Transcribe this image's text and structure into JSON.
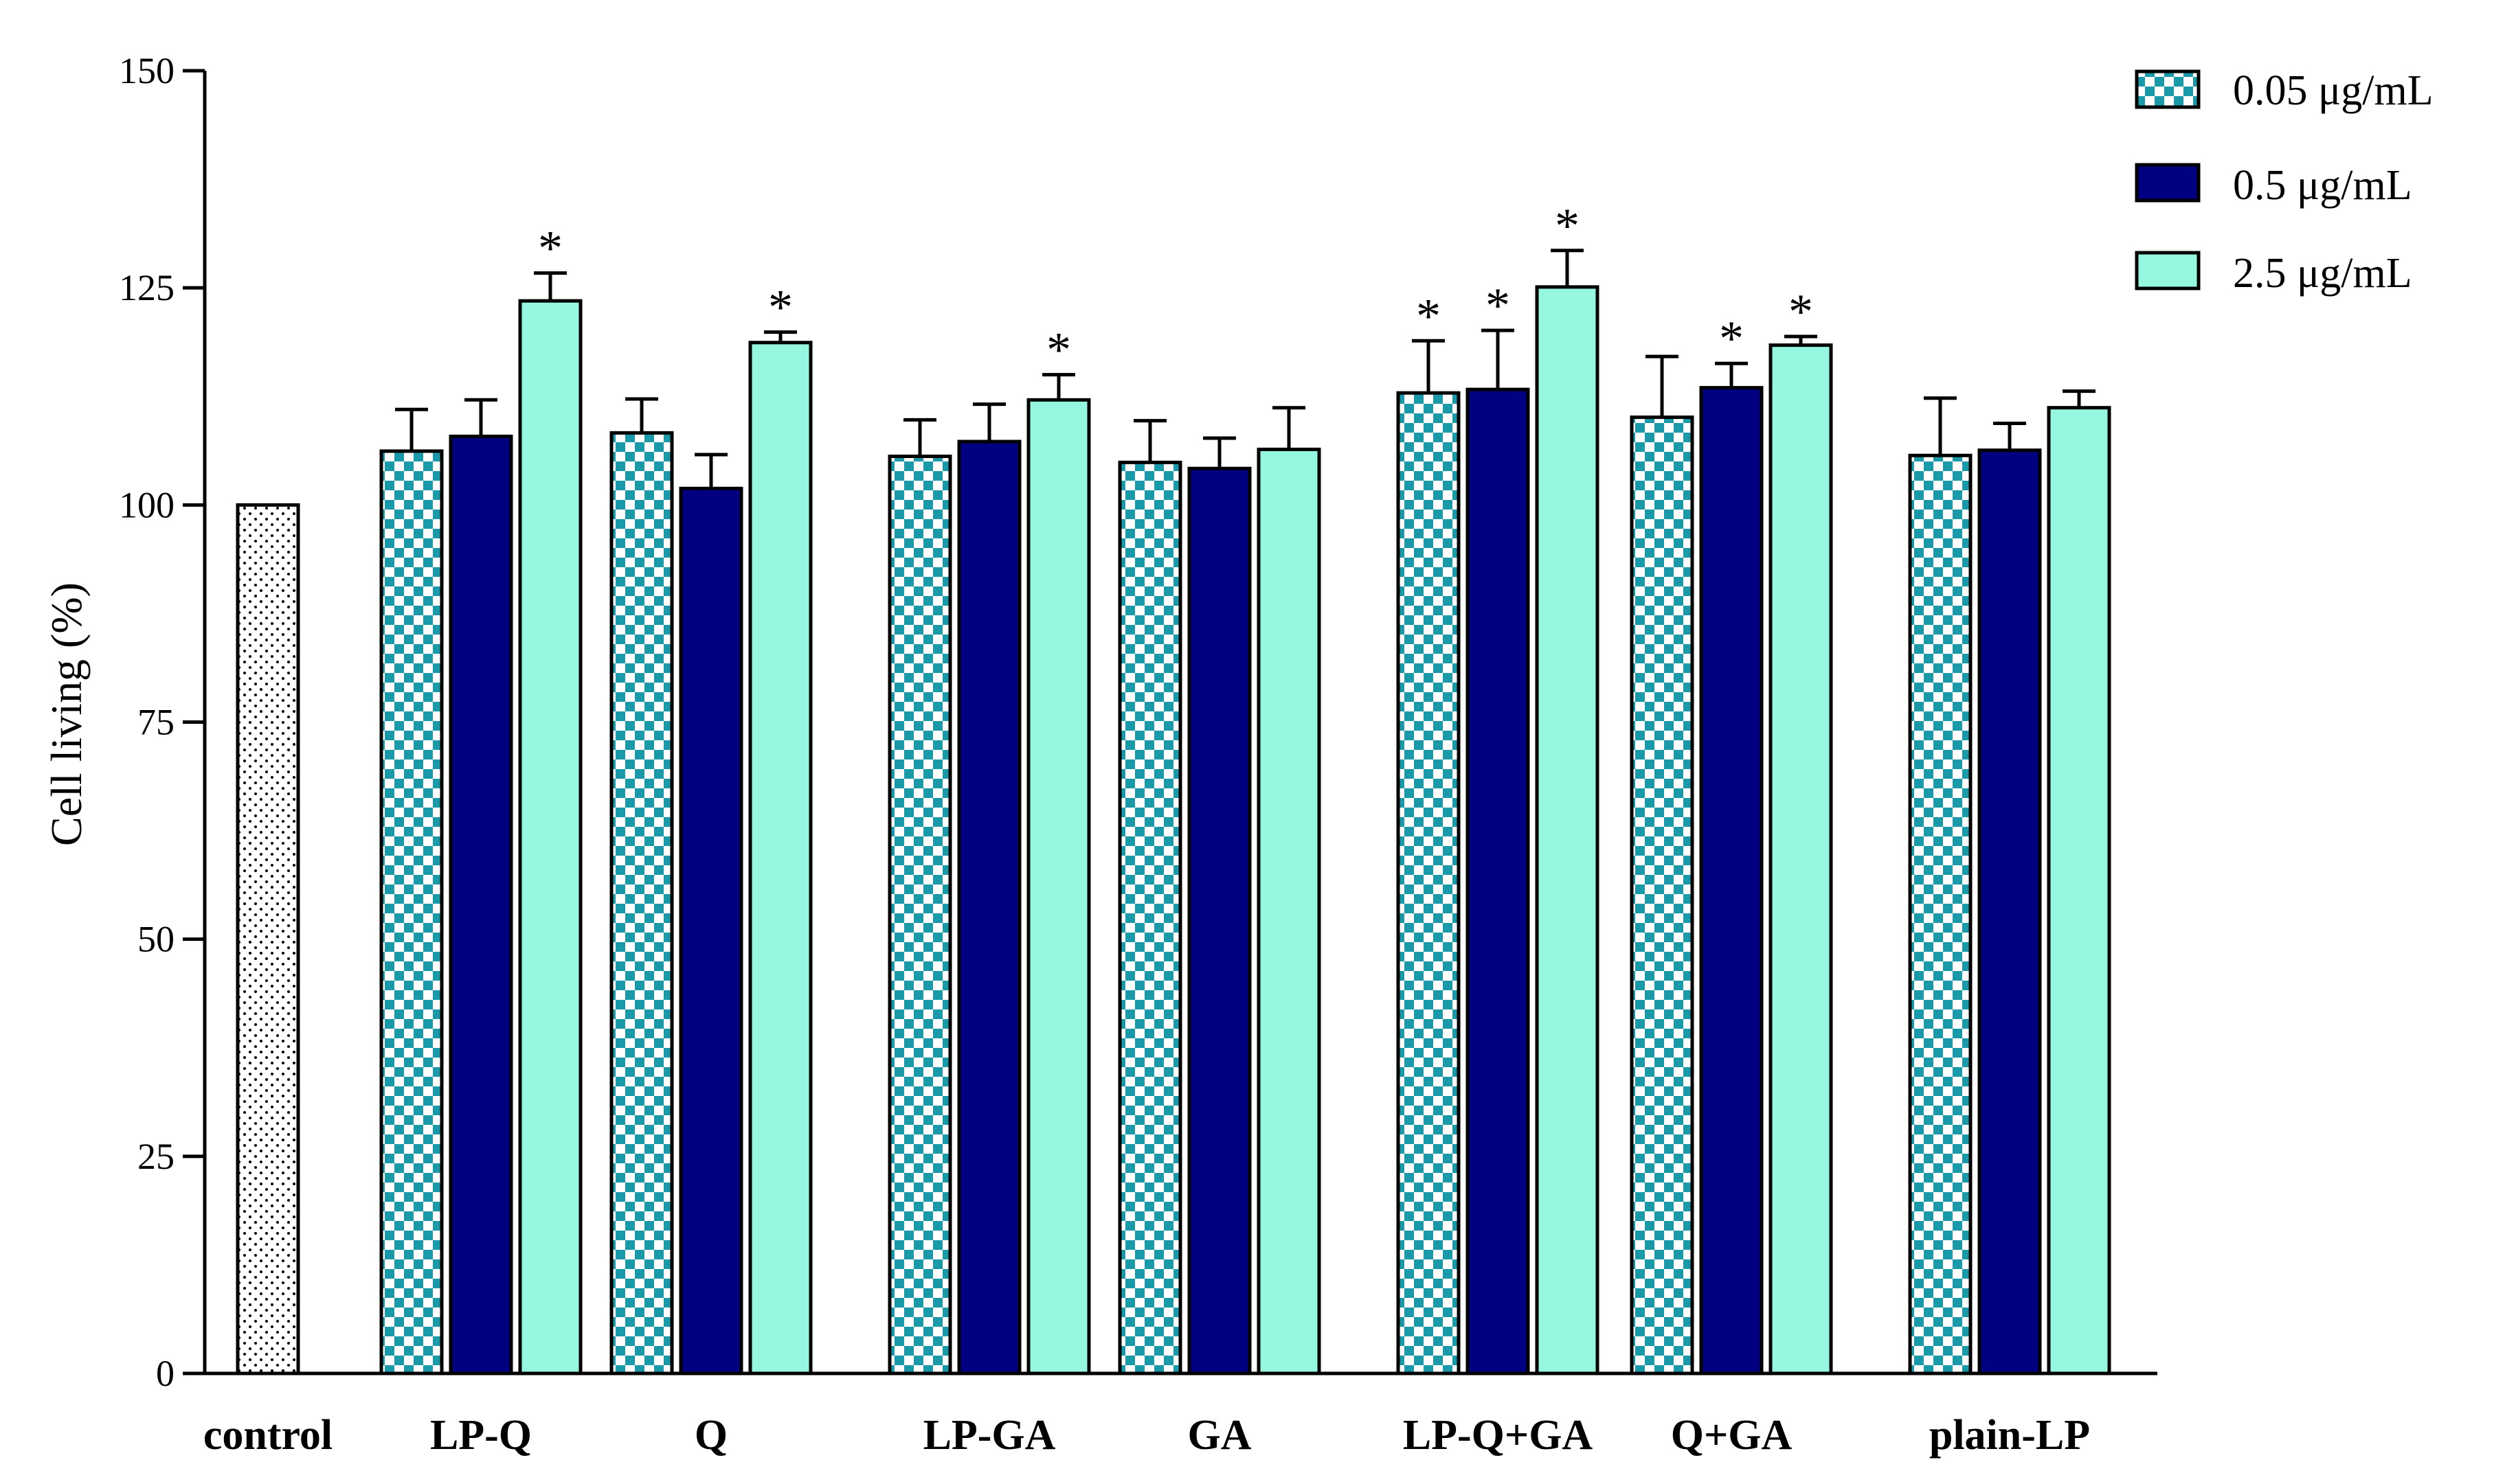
{
  "chart_data": {
    "type": "bar",
    "title": "",
    "xlabel": "",
    "ylabel": "Cell living (%)",
    "ylim": [
      0,
      150
    ],
    "yticks": [
      0,
      25,
      50,
      75,
      100,
      125,
      150
    ],
    "grid": false,
    "legend_position": "top-right",
    "colors": {
      "checker": "#1a9aa8",
      "navy": "#000080",
      "mint": "#95f7df",
      "outline": "#000000",
      "control_dots": "#000000"
    },
    "control": {
      "category": "control",
      "value": 100
    },
    "categories": [
      "LP-Q",
      "Q",
      "LP-GA",
      "GA",
      "LP-Q+GA",
      "Q+GA",
      "plain-LP"
    ],
    "series": [
      {
        "name": "0.05 μg/mL",
        "pattern": "checker",
        "values": [
          106.2,
          108.3,
          105.6,
          104.9,
          112.9,
          110.1,
          105.7
        ],
        "errors": [
          4.8,
          3.9,
          4.2,
          4.8,
          6.0,
          7.0,
          6.6
        ],
        "significant": [
          false,
          false,
          false,
          false,
          true,
          false,
          false
        ]
      },
      {
        "name": "0.5 μg/mL",
        "pattern": "navy",
        "values": [
          107.9,
          101.9,
          107.3,
          104.2,
          113.3,
          113.5,
          106.3
        ],
        "errors": [
          4.2,
          3.9,
          4.3,
          3.5,
          6.8,
          2.8,
          3.1
        ],
        "significant": [
          false,
          false,
          false,
          false,
          true,
          true,
          false
        ]
      },
      {
        "name": "2.5 μg/mL",
        "pattern": "mint",
        "values": [
          123.5,
          118.7,
          112.1,
          106.4,
          125.1,
          118.4,
          111.2
        ],
        "errors": [
          3.2,
          1.2,
          2.9,
          4.8,
          4.2,
          1.0,
          1.9
        ],
        "significant": [
          true,
          true,
          true,
          false,
          true,
          true,
          false
        ]
      }
    ],
    "annotations": {
      "significance_marker": "*"
    }
  }
}
